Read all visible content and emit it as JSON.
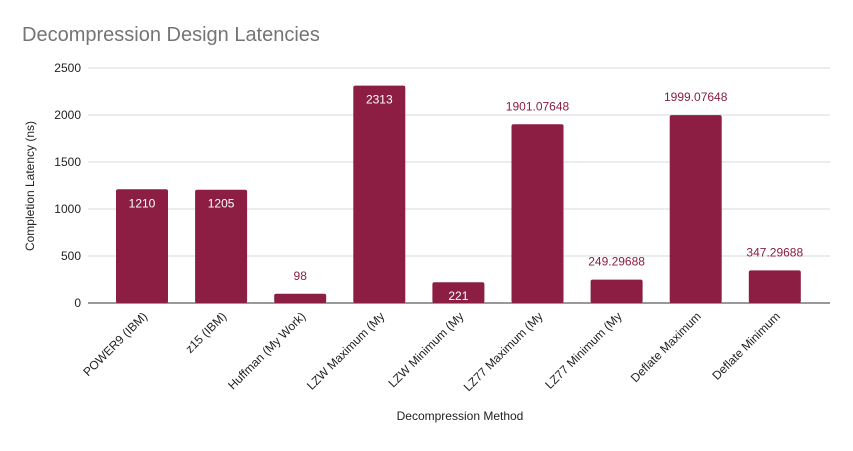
{
  "chart_data": {
    "type": "bar",
    "title": "Decompression Design Latencies",
    "xlabel": "Decompression Method",
    "ylabel": "Completion Latency (ns)",
    "ylim": [
      0,
      2500
    ],
    "yticks": [
      0,
      500,
      1000,
      1500,
      2000,
      2500
    ],
    "grid": true,
    "legend": "none",
    "bar_color": "#8b1e42",
    "categories": [
      "POWER9 (IBM)",
      "z15 (IBM)",
      "Huffman (My Work)",
      "LZW Maximum (My",
      "LZW Minimum (My",
      "LZ77 Maximum (My",
      "LZ77 Minimum (My",
      "Deflate Maximum",
      "Deflate Minimum"
    ],
    "values": [
      1210,
      1205,
      98,
      2313,
      221,
      1901.07648,
      249.29688,
      1999.07648,
      347.29688
    ],
    "data_labels": [
      "1210",
      "1205",
      "98",
      "2313",
      "221",
      "1901.07648",
      "249.29688",
      "1999.07648",
      "347.29688"
    ],
    "data_label_position": [
      "inside",
      "inside",
      "outside",
      "inside",
      "inside",
      "outside",
      "outside",
      "outside",
      "outside"
    ]
  }
}
